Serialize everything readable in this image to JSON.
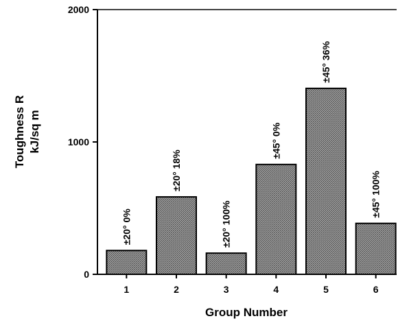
{
  "chart_data": {
    "type": "bar",
    "title": "",
    "xlabel": "Group Number",
    "ylabel_lines": [
      "Toughness R",
      "kJ/sq m"
    ],
    "ylim": [
      0,
      2000
    ],
    "yticks": [
      0,
      1000,
      2000
    ],
    "categories": [
      "1",
      "2",
      "3",
      "4",
      "5",
      "6"
    ],
    "values": [
      180,
      585,
      160,
      830,
      1405,
      385
    ],
    "bar_labels": [
      "±20° 0%",
      "±20° 18%",
      "±20° 100%",
      "±45° 0%",
      "±45° 36%",
      "±45° 100%"
    ],
    "grid": false,
    "legend": "none"
  },
  "colors": {
    "bar_fill": "#8a8a8a",
    "bar_stroke": "#000000",
    "axis": "#000000",
    "background": "#ffffff"
  }
}
